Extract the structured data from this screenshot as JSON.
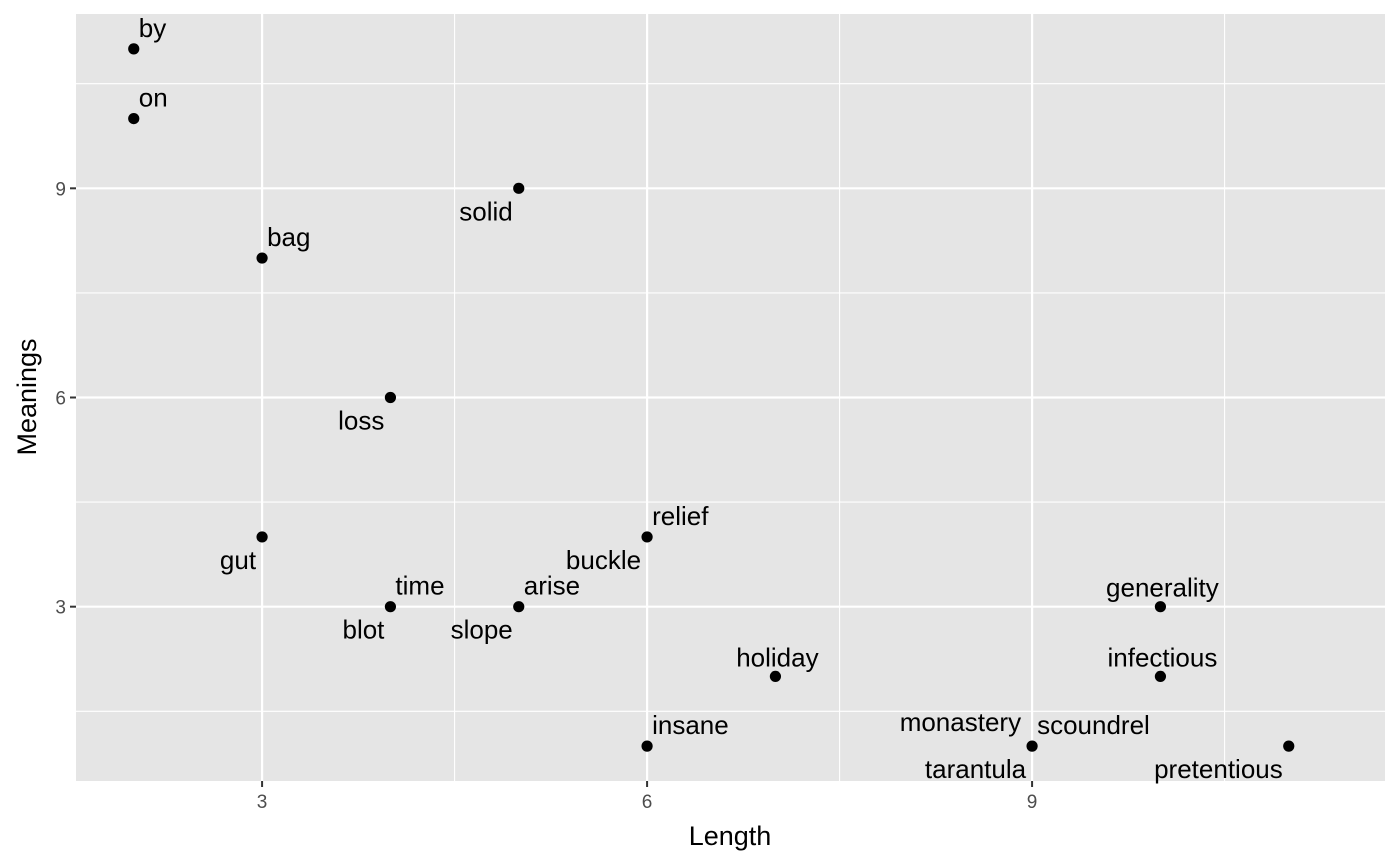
{
  "chart_data": {
    "type": "scatter",
    "title": "",
    "xlabel": "Length",
    "ylabel": "Meanings",
    "xlim": [
      1.55,
      11.75
    ],
    "ylim": [
      0.5,
      11.5
    ],
    "x_ticks": [
      3,
      6,
      9
    ],
    "y_ticks": [
      3,
      6,
      9
    ],
    "grid": true,
    "legend": "none",
    "colors": {
      "panel": "#e5e5e5",
      "grid": "#ffffff",
      "point": "#000000",
      "tick_text": "#4d4d4d"
    },
    "points": [
      {
        "label": "by",
        "x": 2,
        "y": 11,
        "label_pos": "upper-right"
      },
      {
        "label": "on",
        "x": 2,
        "y": 10,
        "label_pos": "upper-right"
      },
      {
        "label": "solid",
        "x": 5,
        "y": 9,
        "label_pos": "lower-left"
      },
      {
        "label": "bag",
        "x": 3,
        "y": 8,
        "label_pos": "upper-right"
      },
      {
        "label": "loss",
        "x": 4,
        "y": 6,
        "label_pos": "lower-left"
      },
      {
        "label": "gut",
        "x": 3,
        "y": 4,
        "label_pos": "lower-left"
      },
      {
        "label": "relief",
        "x": 6,
        "y": 4,
        "label_pos": "upper-right"
      },
      {
        "label": "buckle",
        "x": 6,
        "y": 4,
        "label_pos": "lower-left"
      },
      {
        "label": "time",
        "x": 4,
        "y": 3,
        "label_pos": "upper-right"
      },
      {
        "label": "blot",
        "x": 4,
        "y": 3,
        "label_pos": "lower-left"
      },
      {
        "label": "arise",
        "x": 5,
        "y": 3,
        "label_pos": "upper-right"
      },
      {
        "label": "slope",
        "x": 5,
        "y": 3,
        "label_pos": "lower-left"
      },
      {
        "label": "generality",
        "x": 10,
        "y": 3,
        "label_pos": "upper"
      },
      {
        "label": "holiday",
        "x": 7,
        "y": 2,
        "label_pos": "upper"
      },
      {
        "label": "infectious",
        "x": 10,
        "y": 2,
        "label_pos": "upper"
      },
      {
        "label": "insane",
        "x": 6,
        "y": 1,
        "label_pos": "upper-right"
      },
      {
        "label": "monastery",
        "x": 9,
        "y": 1,
        "label_pos": "upper-left"
      },
      {
        "label": "scoundrel",
        "x": 9,
        "y": 1,
        "label_pos": "upper-right"
      },
      {
        "label": "tarantula",
        "x": 9,
        "y": 1,
        "label_pos": "lower-left"
      },
      {
        "label": "pretentious",
        "x": 11,
        "y": 1,
        "label_pos": "lower-left"
      }
    ]
  }
}
